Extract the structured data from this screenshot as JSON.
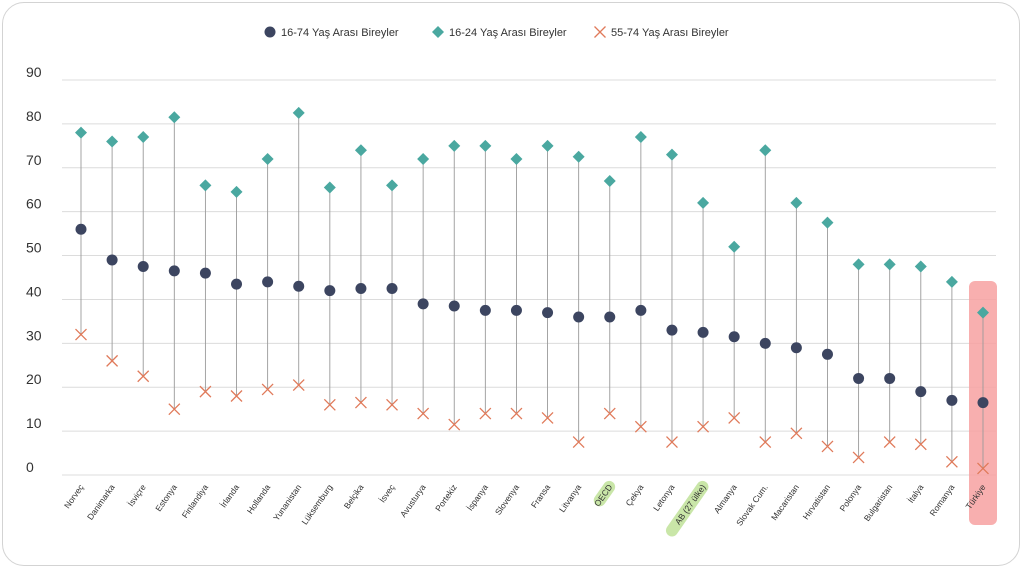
{
  "chart_data": {
    "type": "scatter",
    "subtype": "dumbbell",
    "title": "",
    "xlabel": "",
    "ylabel": "",
    "ylim": [
      0,
      90
    ],
    "yticks": [
      0,
      10,
      20,
      30,
      40,
      50,
      60,
      70,
      80,
      90
    ],
    "grid": true,
    "legend_position": "top-center",
    "categories": [
      "Norveç",
      "Danimarka",
      "İsviçre",
      "Estonya",
      "Finlandiya",
      "İrlanda",
      "Hollanda",
      "Yunanistan",
      "Lüksemburg",
      "Belçika",
      "İsveç",
      "Avusturya",
      "Portekiz",
      "İspanya",
      "Slovenya",
      "Fransa",
      "Litvanya",
      "OECD",
      "Çekya",
      "Letonya",
      "AB (27 ülke)",
      "Almanya",
      "Slovak Cum.",
      "Macaristan",
      "Hırvatistan",
      "Polonya",
      "Bulgaristan",
      "İtalya",
      "Romanya",
      "Türkiye"
    ],
    "highlight_green": [
      "OECD",
      "AB (27 ülke)"
    ],
    "highlight_red": [
      "Türkiye"
    ],
    "series": [
      {
        "name": "16-74 Yaş Arası Bireyler",
        "marker": "circle",
        "color": "#3c4560",
        "values": [
          56,
          49,
          47.5,
          46.5,
          46,
          43.5,
          44,
          43,
          42,
          42.5,
          42.5,
          39,
          38.5,
          37.5,
          37.5,
          37,
          36,
          36,
          37.5,
          33,
          32.5,
          31.5,
          30,
          29,
          27.5,
          22,
          22,
          19,
          17,
          16.5
        ]
      },
      {
        "name": "16-24 Yaş Arası Bireyler",
        "marker": "diamond",
        "color": "#4aa8a0",
        "values": [
          78,
          76,
          77,
          81.5,
          66,
          64.5,
          72,
          82.5,
          65.5,
          74,
          66,
          72,
          75,
          75,
          72,
          75,
          72.5,
          67,
          77,
          73,
          62,
          52,
          74,
          62,
          57.5,
          48,
          48,
          47.5,
          44,
          37
        ]
      },
      {
        "name": "55-74 Yaş Arası Bireyler",
        "marker": "x",
        "color": "#e07a5a",
        "values": [
          32,
          26,
          22.5,
          15,
          19,
          18,
          19.5,
          20.5,
          16,
          16.5,
          16,
          14,
          11.5,
          14,
          14,
          13,
          7.5,
          14,
          11,
          7.5,
          11,
          13,
          7.5,
          9.5,
          6.5,
          4,
          7.5,
          7,
          3,
          1.5
        ]
      }
    ]
  }
}
